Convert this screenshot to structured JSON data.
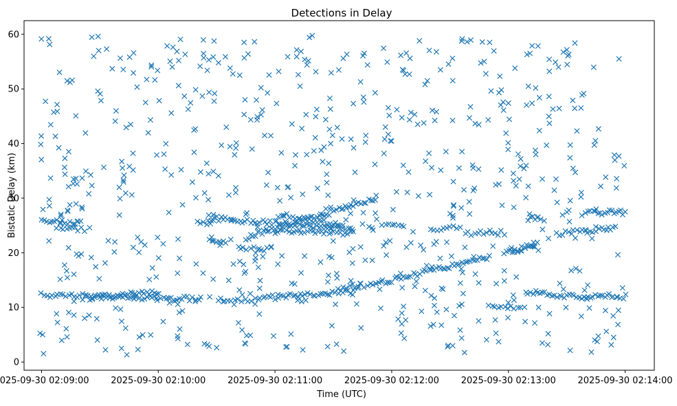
{
  "chart_data": {
    "type": "scatter",
    "title": "Detections in Delay",
    "xlabel": "Time (UTC)",
    "ylabel": "Bistatic Delay (km)",
    "xlim": [
      "2025-09-30 02:08:51",
      "2025-09-30 02:14:15"
    ],
    "ylim": [
      -1.5,
      62.5
    ],
    "x_ticks": [
      "2025-09-30 02:09:00",
      "2025-09-30 02:10:00",
      "2025-09-30 02:11:00",
      "2025-09-30 02:12:00",
      "2025-09-30 02:13:00",
      "2025-09-30 02:14:00"
    ],
    "x_tick_labels": [
      "2025-09-30 02:09:00",
      "2025-09-30 02:10:00",
      "2025-09-30 02:11:00",
      "2025-09-30 02:12:00",
      "2025-09-30 02:13:00",
      "2025-09-30 02:14:00"
    ],
    "y_ticks": [
      0,
      10,
      20,
      30,
      40,
      50,
      60
    ],
    "y_tick_labels": [
      "0",
      "10",
      "20",
      "30",
      "40",
      "50",
      "60"
    ],
    "grid": false,
    "legend": "none",
    "marker": "x",
    "color": "#1f77b4",
    "series": [
      {
        "name": "",
        "tracks": [
          {
            "start": [
              "2025-09-30 02:09:00",
              12.3
            ],
            "end": [
              "2025-09-30 02:10:22",
              11.5
            ],
            "count": 60
          },
          {
            "start": [
              "2025-09-30 02:09:25",
              11.8
            ],
            "end": [
              "2025-09-30 02:10:00",
              12.9
            ],
            "count": 30
          },
          {
            "start": [
              "2025-09-30 02:09:00",
              25.7
            ],
            "end": [
              "2025-09-30 02:09:20",
              25.6
            ],
            "count": 16
          },
          {
            "start": [
              "2025-09-30 02:09:08",
              24.5
            ],
            "end": [
              "2025-09-30 02:09:22",
              24.2
            ],
            "count": 10
          },
          {
            "start": [
              "2025-09-30 02:10:20",
              25.6
            ],
            "end": [
              "2025-09-30 02:10:28",
              25.6
            ],
            "count": 6
          },
          {
            "start": [
              "2025-09-30 02:10:26",
              26.3
            ],
            "end": [
              "2025-09-30 02:11:40",
              24.5
            ],
            "count": 60
          },
          {
            "start": [
              "2025-09-30 02:10:26",
              22.0
            ],
            "end": [
              "2025-09-30 02:10:35",
              22.0
            ],
            "count": 8
          },
          {
            "start": [
              "2025-09-30 02:10:45",
              22.8
            ],
            "end": [
              "2025-09-30 02:11:25",
              27.0
            ],
            "count": 35
          },
          {
            "start": [
              "2025-09-30 02:11:00",
              23.8
            ],
            "end": [
              "2025-09-30 02:11:40",
              23.5
            ],
            "count": 30
          },
          {
            "start": [
              "2025-09-30 02:11:02",
              27.0
            ],
            "end": [
              "2025-09-30 02:11:35",
              25.0
            ],
            "count": 25
          },
          {
            "start": [
              "2025-09-30 02:11:25",
              27.0
            ],
            "end": [
              "2025-09-30 02:11:52",
              30.0
            ],
            "count": 22
          },
          {
            "start": [
              "2025-09-30 02:10:42",
              20.7
            ],
            "end": [
              "2025-09-30 02:10:58",
              20.7
            ],
            "count": 10
          },
          {
            "start": [
              "2025-09-30 02:10:50",
              11.6
            ],
            "end": [
              "2025-09-30 02:11:40",
              13.0
            ],
            "count": 40
          },
          {
            "start": [
              "2025-09-30 02:10:32",
              11.4
            ],
            "end": [
              "2025-09-30 02:10:48",
              11.4
            ],
            "count": 10
          },
          {
            "start": [
              "2025-09-30 02:11:35",
              13.9
            ],
            "end": [
              "2025-09-30 02:11:52",
              14.1
            ],
            "count": 12
          },
          {
            "start": [
              "2025-09-30 02:11:52",
              14.3
            ],
            "end": [
              "2025-09-30 02:12:50",
              19.3
            ],
            "count": 50
          },
          {
            "start": [
              "2025-09-30 02:12:38",
              23.6
            ],
            "end": [
              "2025-09-30 02:12:58",
              23.7
            ],
            "count": 14
          },
          {
            "start": [
              "2025-09-30 02:11:55",
              25.2
            ],
            "end": [
              "2025-09-30 02:12:05",
              25.2
            ],
            "count": 7
          },
          {
            "start": [
              "2025-09-30 02:12:20",
              24.4
            ],
            "end": [
              "2025-09-30 02:12:35",
              24.6
            ],
            "count": 10
          },
          {
            "start": [
              "2025-09-30 02:12:58",
              20.0
            ],
            "end": [
              "2025-09-30 02:13:15",
              21.5
            ],
            "count": 14
          },
          {
            "start": [
              "2025-09-30 02:13:00",
              20.8
            ],
            "end": [
              "2025-09-30 02:13:15",
              20.8
            ],
            "count": 10
          },
          {
            "start": [
              "2025-09-30 02:12:50",
              10.0
            ],
            "end": [
              "2025-09-30 02:13:08",
              10.0
            ],
            "count": 12
          },
          {
            "start": [
              "2025-09-30 02:13:10",
              12.8
            ],
            "end": [
              "2025-09-30 02:13:40",
              11.8
            ],
            "count": 25
          },
          {
            "start": [
              "2025-09-30 02:13:40",
              12.1
            ],
            "end": [
              "2025-09-30 02:14:00",
              12.0
            ],
            "count": 18
          },
          {
            "start": [
              "2025-09-30 02:13:10",
              26.3
            ],
            "end": [
              "2025-09-30 02:13:18",
              26.3
            ],
            "count": 8
          },
          {
            "start": [
              "2025-09-30 02:13:25",
              23.5
            ],
            "end": [
              "2025-09-30 02:13:55",
              24.5
            ],
            "count": 22
          },
          {
            "start": [
              "2025-09-30 02:13:40",
              27.4
            ],
            "end": [
              "2025-09-30 02:14:00",
              27.4
            ],
            "count": 18
          }
        ],
        "clutter": {
          "start": "2025-09-30 02:08:58",
          "end": "2025-09-30 02:14:00",
          "min": 1.0,
          "max": 60.0,
          "count": 700
        }
      }
    ]
  }
}
